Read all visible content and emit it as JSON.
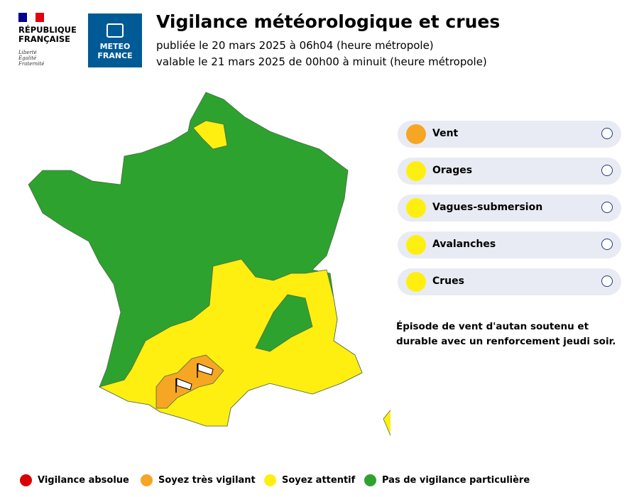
{
  "header": {
    "republic": [
      "RÉPUBLIQUE",
      "FRANÇAISE"
    ],
    "motto": [
      "Liberté",
      "Égalité",
      "Fraternité"
    ],
    "brand": [
      "METEO",
      "FRANCE"
    ],
    "title": "Vigilance météorologique et crues",
    "published": "publiée le 20 mars 2025 à 06h04 (heure métropole)",
    "valid": "valable le 21 mars 2025 de 00h00 à minuit (heure métropole)"
  },
  "phenomena": [
    {
      "label": "Vent",
      "color": "#f6a623"
    },
    {
      "label": "Orages",
      "color": "#ffef10"
    },
    {
      "label": "Vagues-submersion",
      "color": "#ffef10"
    },
    {
      "label": "Avalanches",
      "color": "#ffef10"
    },
    {
      "label": "Crues",
      "color": "#ffef10"
    }
  ],
  "comment": "Épisode de vent d'autan soutenu et durable avec un renforcement jeudi soir.",
  "legend": [
    {
      "label": "Vigilance absolue",
      "color": "#d90000"
    },
    {
      "label": "Soyez très vigilant",
      "color": "#f6a623"
    },
    {
      "label": "Soyez attentif",
      "color": "#ffef10"
    },
    {
      "label": "Pas de vigilance particulière",
      "color": "#2ea22e"
    }
  ]
}
